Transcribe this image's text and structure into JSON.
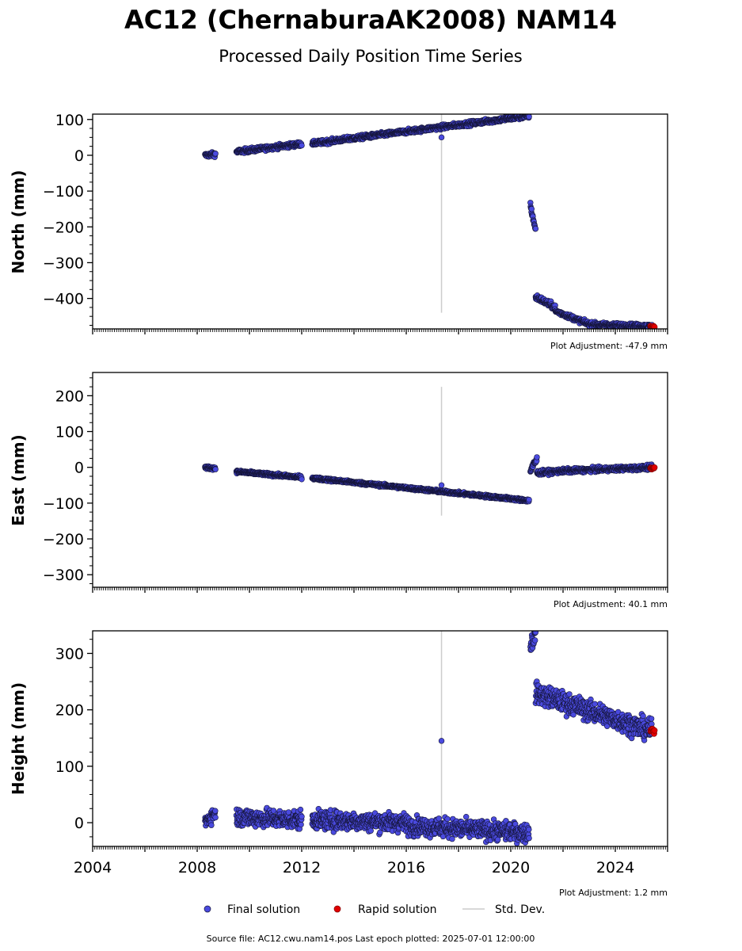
{
  "chart_data": {
    "type": "scatter",
    "title": "AC12 (ChernaburaAK2008) NAM14",
    "subtitle": "Processed Daily Position Time Series",
    "x_ticks": [
      "2004",
      "2008",
      "2012",
      "2016",
      "2020",
      "2024"
    ],
    "xlim": [
      2004.0,
      2026.0
    ],
    "grid": false,
    "legend_placement": "bottom-center",
    "colors": {
      "final": "#4a4adf",
      "final_edge": "#15153a",
      "rapid": "#e00000",
      "std": "#cccccc"
    },
    "legend": [
      {
        "label": "Final solution",
        "marker": "final"
      },
      {
        "label": "Rapid solution",
        "marker": "rapid"
      },
      {
        "label": "Std. Dev.",
        "marker": "line"
      }
    ],
    "footer": "Source file: AC12.cwu.nam14.pos  Last epoch plotted: 2025-07-01 12:00:00",
    "panels": [
      {
        "id": "north",
        "ylabel": "North (mm)",
        "ylim": [
          -485,
          115
        ],
        "yticks": [
          100,
          0,
          -100,
          -200,
          -300,
          -400
        ],
        "ytick_labels": [
          "100",
          "0",
          "−100",
          "−200",
          "−300",
          "−400"
        ],
        "adjustment": "Plot Adjustment: -47.9 mm",
        "outlier": {
          "x": 2017.35,
          "y": 50,
          "sd_low": -440,
          "sd_high": 115
        },
        "segments": [
          {
            "x0": 2008.3,
            "x1": 2008.7,
            "y0": 0,
            "y1": 3,
            "noise": 3
          },
          {
            "x0": 2009.5,
            "x1": 2012.0,
            "y0": 10,
            "y1": 32,
            "noise": 3
          },
          {
            "x0": 2012.4,
            "x1": 2020.7,
            "y0": 33,
            "y1": 110,
            "noise": 3
          },
          {
            "x0": 2020.75,
            "x1": 2020.95,
            "y0": -140,
            "y1": -210,
            "noise": 4
          },
          {
            "x0": 2020.95,
            "x1": 2021.7,
            "y0": -395,
            "y1": -425,
            "noise": 4
          },
          {
            "x0": 2021.7,
            "x1": 2023.0,
            "y0": -435,
            "y1": -472,
            "noise": 3
          },
          {
            "x0": 2023.0,
            "x1": 2025.4,
            "y0": -472,
            "y1": -478,
            "noise": 3
          }
        ],
        "rapid": {
          "x0": 2025.35,
          "x1": 2025.5,
          "y": -479
        }
      },
      {
        "id": "east",
        "ylabel": "East (mm)",
        "ylim": [
          -335,
          265
        ],
        "yticks": [
          200,
          100,
          0,
          -100,
          -200,
          -300
        ],
        "ytick_labels": [
          "200",
          "100",
          "0",
          "−100",
          "−200",
          "−300"
        ],
        "adjustment": "Plot Adjustment: 40.1 mm",
        "outlier": {
          "x": 2017.35,
          "y": -50,
          "sd_low": -135,
          "sd_high": 225
        },
        "segments": [
          {
            "x0": 2008.3,
            "x1": 2008.7,
            "y0": 0,
            "y1": -3,
            "noise": 2
          },
          {
            "x0": 2009.5,
            "x1": 2012.0,
            "y0": -12,
            "y1": -28,
            "noise": 2
          },
          {
            "x0": 2012.4,
            "x1": 2020.7,
            "y0": -30,
            "y1": -93,
            "noise": 2
          },
          {
            "x0": 2020.75,
            "x1": 2021.0,
            "y0": -8,
            "y1": 22,
            "noise": 5
          },
          {
            "x0": 2021.0,
            "x1": 2022.0,
            "y0": -15,
            "y1": -10,
            "noise": 3
          },
          {
            "x0": 2022.0,
            "x1": 2025.4,
            "y0": -10,
            "y1": 0,
            "noise": 3
          }
        ],
        "rapid": {
          "x0": 2025.35,
          "x1": 2025.5,
          "y": -2
        }
      },
      {
        "id": "height",
        "ylabel": "Height (mm)",
        "ylim": [
          -42,
          340
        ],
        "yticks": [
          300,
          200,
          100,
          0
        ],
        "ytick_labels": [
          "300",
          "200",
          "100",
          "0"
        ],
        "adjustment": "Plot Adjustment: 1.2 mm",
        "outlier": {
          "x": 2017.35,
          "y": 145,
          "sd_low": -30,
          "sd_high": 340
        },
        "segments": [
          {
            "x0": 2008.3,
            "x1": 2008.7,
            "y0": 2,
            "y1": 18,
            "noise": 6
          },
          {
            "x0": 2009.5,
            "x1": 2012.0,
            "y0": 10,
            "y1": 5,
            "noise": 8
          },
          {
            "x0": 2012.4,
            "x1": 2016.0,
            "y0": 5,
            "y1": 0,
            "noise": 8
          },
          {
            "x0": 2016.0,
            "x1": 2020.7,
            "y0": -5,
            "y1": -18,
            "noise": 8
          },
          {
            "x0": 2020.75,
            "x1": 2020.95,
            "y0": 315,
            "y1": 335,
            "noise": 8
          },
          {
            "x0": 2020.95,
            "x1": 2025.4,
            "y0": 230,
            "y1": 162,
            "noise": 9
          }
        ],
        "rapid": {
          "x0": 2025.35,
          "x1": 2025.5,
          "y": 163
        }
      }
    ]
  }
}
